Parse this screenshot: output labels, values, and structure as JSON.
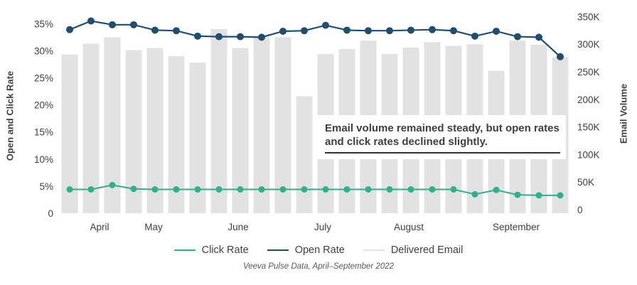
{
  "chart_data": {
    "type": "combo-bar-line",
    "title": "",
    "weeks": 24,
    "month_labels": [
      "April",
      "May",
      "June",
      "July",
      "August",
      "September"
    ],
    "left_axis": {
      "label": "Open and Click Rate",
      "ticks": [
        "0",
        "5%",
        "10%",
        "15%",
        "20%",
        "25%",
        "30%",
        "35%"
      ],
      "range_pct": [
        0,
        35
      ]
    },
    "right_axis": {
      "label": "Email Volume",
      "ticks": [
        "0",
        "50K",
        "100K",
        "150K",
        "200K",
        "250K",
        "300K",
        "350K"
      ],
      "range": [
        0,
        350000
      ]
    },
    "series": [
      {
        "name": "Click Rate",
        "type": "line",
        "axis": "left",
        "color": "#2FB18A",
        "values_pct": [
          4.4,
          4.4,
          5.2,
          4.5,
          4.4,
          4.4,
          4.4,
          4.4,
          4.4,
          4.4,
          4.4,
          4.4,
          4.4,
          4.4,
          4.4,
          4.4,
          4.4,
          4.4,
          4.4,
          3.5,
          4.3,
          3.4,
          3.3,
          3.3
        ]
      },
      {
        "name": "Open Rate",
        "type": "line",
        "axis": "left",
        "color": "#1F4E6E",
        "values_pct": [
          33.9,
          35.5,
          34.8,
          34.8,
          33.8,
          33.7,
          32.7,
          32.6,
          32.6,
          32.5,
          33.6,
          33.7,
          34.7,
          33.8,
          33.7,
          33.7,
          33.8,
          33.9,
          33.7,
          32.7,
          33.6,
          32.6,
          32.5,
          28.9
        ]
      },
      {
        "name": "Delivered Email",
        "type": "bar",
        "axis": "right",
        "color": "#E2E2E2",
        "values_k": [
          293,
          313,
          325,
          301,
          305,
          290,
          278,
          340,
          305,
          325,
          325,
          216,
          294,
          303,
          319,
          294,
          306,
          316,
          309,
          312,
          263,
          319,
          311,
          288
        ]
      }
    ],
    "grid": "off",
    "legend_position": "bottom"
  },
  "annotation": {
    "line1": "Email volume remained steady, but open rates",
    "line2": "and click rates declined slightly."
  },
  "legend": {
    "items": [
      {
        "label": "Click Rate"
      },
      {
        "label": "Open Rate"
      },
      {
        "label": "Delivered Email"
      }
    ]
  },
  "caption": "Veeva Pulse Data, April–September 2022"
}
